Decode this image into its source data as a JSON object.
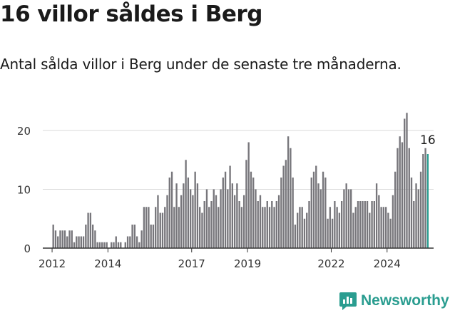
{
  "header": {
    "title": "16 villor såldes i Berg",
    "subtitle": "Antal sålda villor i Berg under de senaste tre månaderna."
  },
  "brand": {
    "name": "Newsworthy",
    "icon": "newsworthy-logo-icon"
  },
  "colors": {
    "bar": "#77767b",
    "highlight": "#2a9d90",
    "grid": "#d9d9d9",
    "axis": "#333333"
  },
  "chart_data": {
    "type": "bar",
    "title": "16 villor såldes i Berg",
    "subtitle": "Antal sålda villor i Berg under de senaste tre månaderna.",
    "xlabel": "",
    "ylabel": "",
    "ylim": [
      0,
      24
    ],
    "yticks": [
      0,
      10,
      20
    ],
    "xticks": [
      "2012",
      "2014",
      "2017",
      "2019",
      "2022",
      "2024"
    ],
    "xlim": [
      "2011-09",
      "2025-09"
    ],
    "grid": true,
    "legend": "none",
    "series": [
      {
        "x": [
          "2012-01",
          "2012-02",
          "2012-03",
          "2012-04",
          "2012-05",
          "2012-06",
          "2012-07",
          "2012-08",
          "2012-09",
          "2012-10",
          "2012-11",
          "2012-12",
          "2013-01",
          "2013-02",
          "2013-03",
          "2013-04",
          "2013-05",
          "2013-06",
          "2013-07",
          "2013-08",
          "2013-09",
          "2013-10",
          "2013-11",
          "2013-12",
          "2014-01",
          "2014-02",
          "2014-03",
          "2014-04",
          "2014-05",
          "2014-06",
          "2014-07",
          "2014-08",
          "2014-09",
          "2014-10",
          "2014-11",
          "2014-12",
          "2015-01",
          "2015-02",
          "2015-03",
          "2015-04",
          "2015-05",
          "2015-06",
          "2015-07",
          "2015-08",
          "2015-09",
          "2015-10",
          "2015-11",
          "2015-12",
          "2016-01",
          "2016-02",
          "2016-03",
          "2016-04",
          "2016-05",
          "2016-06",
          "2016-07",
          "2016-08",
          "2016-09",
          "2016-10",
          "2016-11",
          "2016-12",
          "2017-01",
          "2017-02",
          "2017-03",
          "2017-04",
          "2017-05",
          "2017-06",
          "2017-07",
          "2017-08",
          "2017-09",
          "2017-10",
          "2017-11",
          "2017-12",
          "2018-01",
          "2018-02",
          "2018-03",
          "2018-04",
          "2018-05",
          "2018-06",
          "2018-07",
          "2018-08",
          "2018-09",
          "2018-10",
          "2018-11",
          "2018-12",
          "2019-01",
          "2019-02",
          "2019-03",
          "2019-04",
          "2019-05",
          "2019-06",
          "2019-07",
          "2019-08",
          "2019-09",
          "2019-10",
          "2019-11",
          "2019-12",
          "2020-01",
          "2020-02",
          "2020-03",
          "2020-04",
          "2020-05",
          "2020-06",
          "2020-07",
          "2020-08",
          "2020-09",
          "2020-10",
          "2020-11",
          "2020-12",
          "2021-01",
          "2021-02",
          "2021-03",
          "2021-04",
          "2021-05",
          "2021-06",
          "2021-07",
          "2021-08",
          "2021-09",
          "2021-10",
          "2021-11",
          "2021-12",
          "2022-01",
          "2022-02",
          "2022-03",
          "2022-04",
          "2022-05",
          "2022-06",
          "2022-07",
          "2022-08",
          "2022-09",
          "2022-10",
          "2022-11",
          "2022-12",
          "2023-01",
          "2023-02",
          "2023-03",
          "2023-04",
          "2023-05",
          "2023-06",
          "2023-07",
          "2023-08",
          "2023-09",
          "2023-10",
          "2023-11",
          "2023-12",
          "2024-01",
          "2024-02",
          "2024-03",
          "2024-04",
          "2024-05",
          "2024-06",
          "2024-07",
          "2024-08",
          "2024-09",
          "2024-10",
          "2024-11",
          "2024-12",
          "2025-01",
          "2025-02",
          "2025-03",
          "2025-04",
          "2025-05",
          "2025-06"
        ],
        "values": [
          4,
          3,
          2,
          3,
          3,
          3,
          2,
          3,
          3,
          1,
          2,
          2,
          2,
          2,
          4,
          6,
          6,
          4,
          3,
          1,
          1,
          1,
          1,
          1,
          0,
          1,
          1,
          2,
          1,
          1,
          0,
          1,
          2,
          2,
          4,
          4,
          2,
          1,
          3,
          7,
          7,
          7,
          4,
          4,
          7,
          9,
          6,
          6,
          7,
          9,
          12,
          13,
          7,
          11,
          7,
          9,
          11,
          15,
          12,
          10,
          9,
          13,
          11,
          7,
          6,
          8,
          10,
          7,
          8,
          10,
          9,
          7,
          10,
          12,
          13,
          10,
          14,
          11,
          9,
          11,
          8,
          7,
          9,
          15,
          18,
          13,
          12,
          10,
          8,
          9,
          7,
          7,
          8,
          7,
          8,
          7,
          8,
          9,
          12,
          14,
          15,
          19,
          17,
          12,
          4,
          6,
          7,
          7,
          5,
          6,
          8,
          12,
          13,
          14,
          11,
          10,
          13,
          12,
          5,
          7,
          5,
          8,
          7,
          6,
          8,
          10,
          11,
          10,
          10,
          6,
          7,
          8,
          8,
          8,
          8,
          8,
          6,
          8,
          8,
          11,
          9,
          7,
          7,
          7,
          6,
          5,
          9,
          13,
          17,
          19,
          18,
          22,
          23,
          17,
          12,
          8,
          11,
          10,
          13,
          16,
          17,
          16
        ],
        "highlight_last": true
      }
    ],
    "annotations": [
      {
        "x": "2025-06",
        "text": "16"
      }
    ]
  }
}
